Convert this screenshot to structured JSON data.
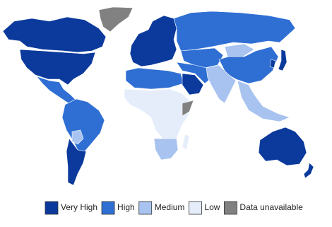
{
  "legend": {
    "items": [
      {
        "label": "Very High",
        "color": "#0b3a9c"
      },
      {
        "label": "High",
        "color": "#2f6fd4"
      },
      {
        "label": "Medium",
        "color": "#a8c3ef"
      },
      {
        "label": "Low",
        "color": "#e5edfb"
      },
      {
        "label": "Data unavailable",
        "color": "#818181"
      }
    ]
  }
}
